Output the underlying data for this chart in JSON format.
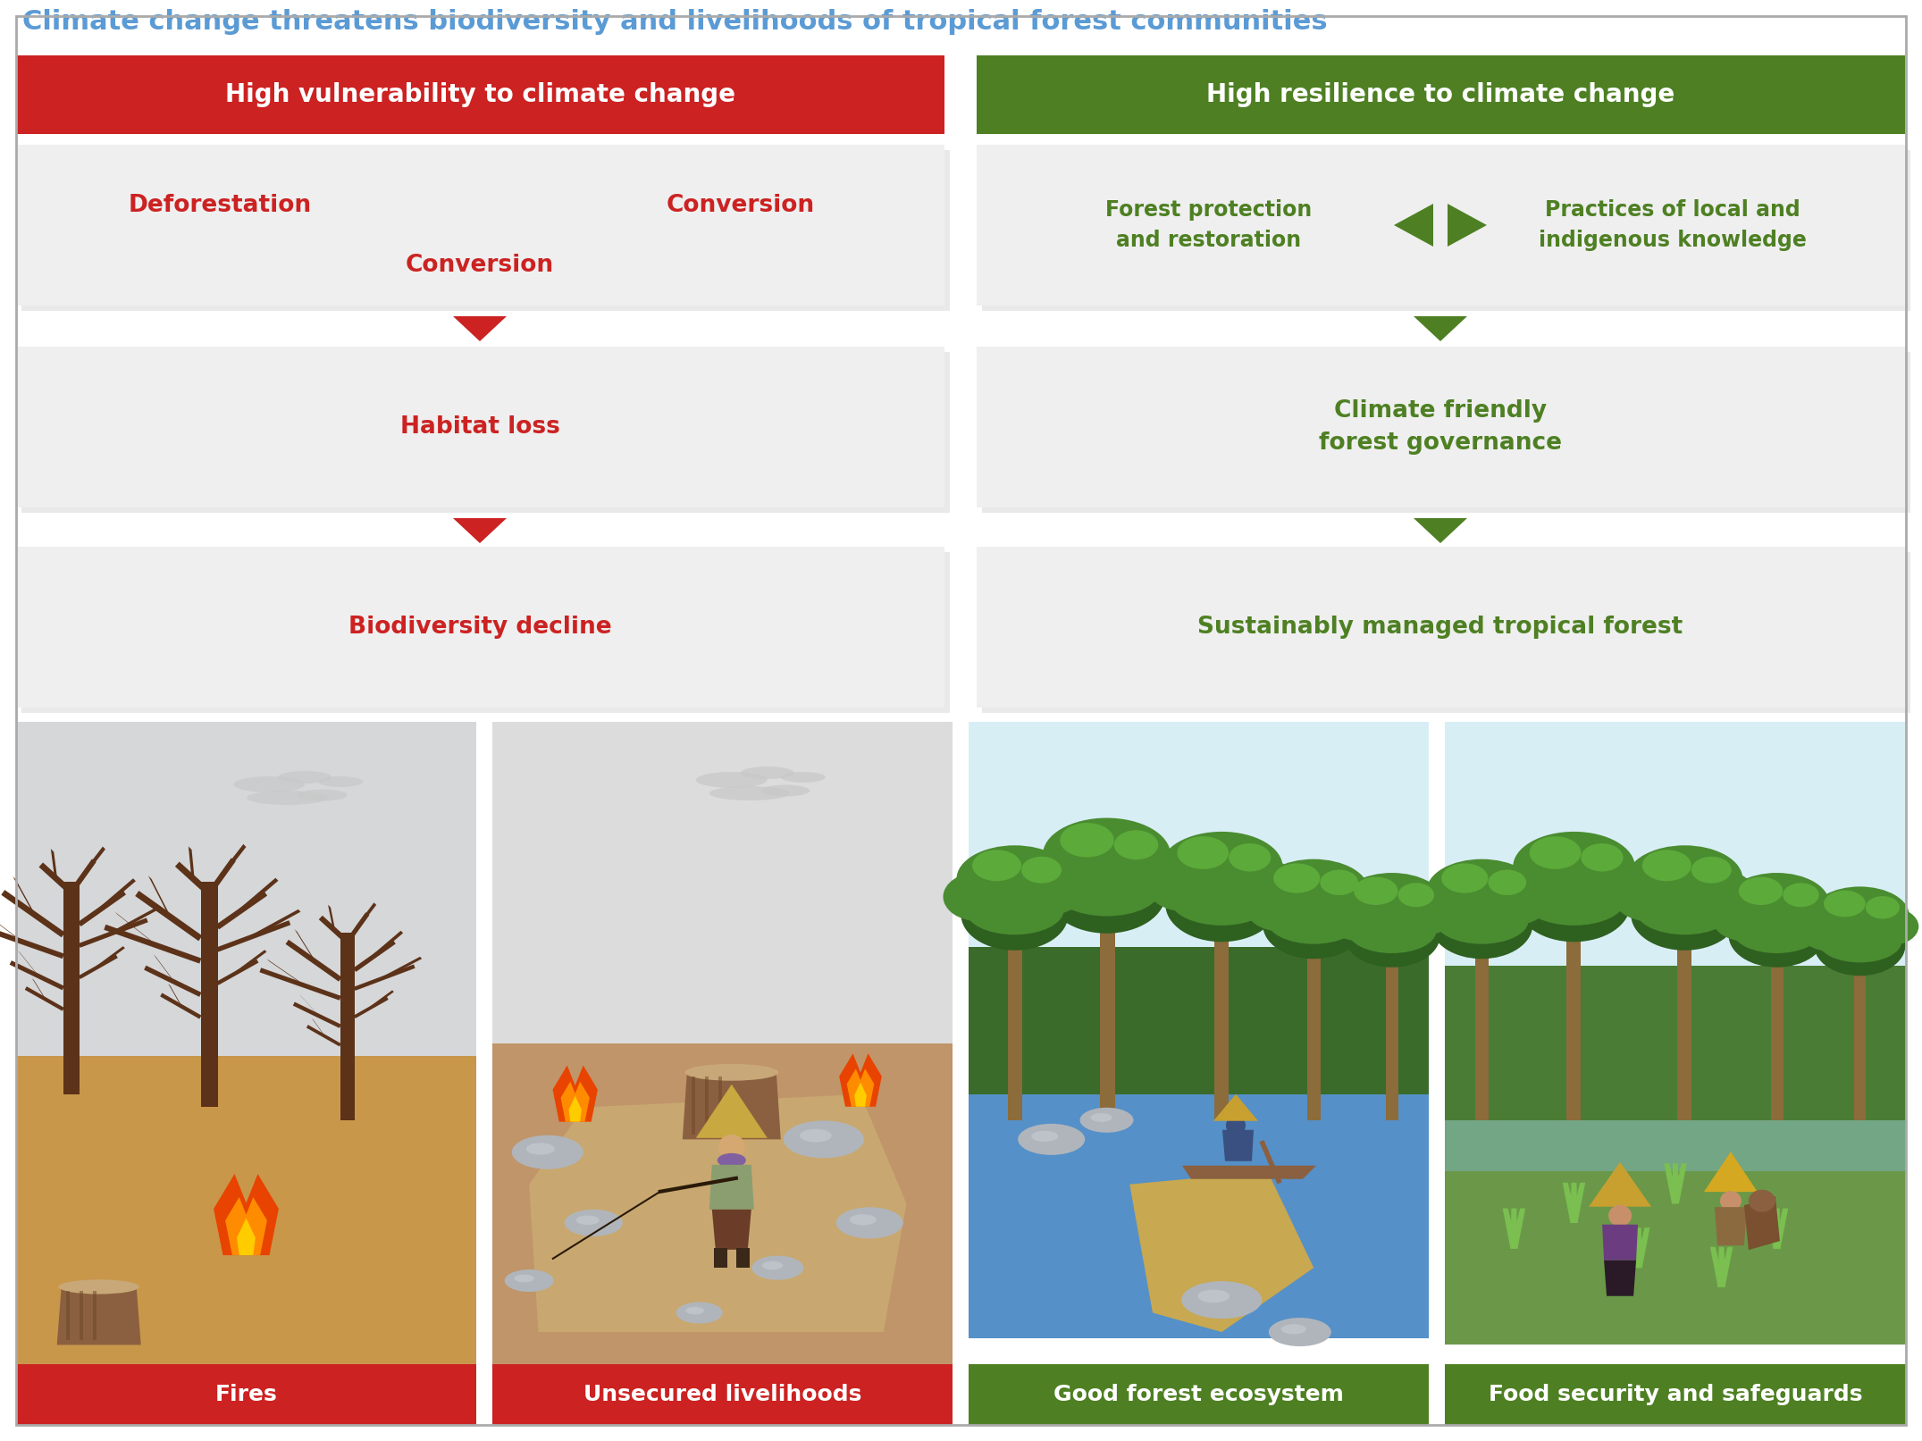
{
  "title": "Climate change threatens biodiversity and livelihoods of tropical forest communities",
  "title_color": "#5B9BD5",
  "title_fontsize": 22,
  "left_header": "High vulnerability to climate change",
  "right_header": "High resilience to climate change",
  "header_left_color": "#CC2222",
  "header_right_color": "#4E8023",
  "header_text_color": "#FFFFFF",
  "left_item_color": "#CC2222",
  "right_item_color": "#4E8023",
  "arrow_red": "#CC2222",
  "arrow_green": "#4E8023",
  "bg_panel": "#EFEFEF",
  "bottom_bg_red": "#CC2222",
  "bottom_bg_green": "#4E8023",
  "bottom_label_left1": "Fires",
  "bottom_label_left2": "Unsecured livelihoods",
  "bottom_label_right1": "Good forest ecosystem",
  "bottom_label_right2": "Food security and safeguards",
  "left_text_1a": "Deforestation",
  "left_text_1b": "Conversion",
  "left_text_1c": "Conversion",
  "left_text_2": "Habitat loss",
  "left_text_3": "Biodiversity decline",
  "right_text_1a": "Forest protection\nand restoration",
  "right_text_1b": "Practices of local and\nindigenous knowledge",
  "right_text_2": "Climate friendly\nforest governance",
  "right_text_3": "Sustainably managed tropical forest"
}
